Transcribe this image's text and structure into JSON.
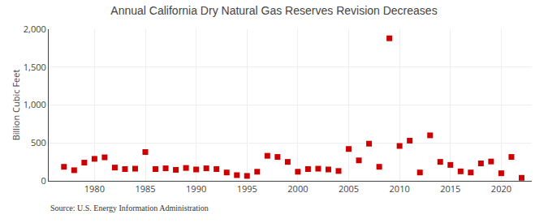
{
  "chart_data": {
    "type": "scatter",
    "title": "Annual California Dry Natural Gas Reserves Revision Decreases",
    "ylabel": "Billion Cubic Feet",
    "annotations": [
      "Source: U.S. Energy Information Administration"
    ],
    "x": [
      1977,
      1978,
      1979,
      1980,
      1981,
      1982,
      1983,
      1984,
      1985,
      1986,
      1987,
      1988,
      1989,
      1990,
      1991,
      1992,
      1993,
      1994,
      1995,
      1996,
      1997,
      1998,
      1999,
      2000,
      2001,
      2002,
      2003,
      2004,
      2005,
      2006,
      2007,
      2008,
      2009,
      2010,
      2011,
      2012,
      2013,
      2014,
      2015,
      2016,
      2017,
      2018,
      2019,
      2020,
      2021,
      2022
    ],
    "values": [
      185,
      140,
      240,
      290,
      310,
      175,
      155,
      160,
      380,
      155,
      165,
      145,
      170,
      150,
      165,
      155,
      110,
      75,
      65,
      120,
      330,
      315,
      250,
      120,
      155,
      160,
      150,
      130,
      420,
      270,
      490,
      185,
      1880,
      460,
      530,
      110,
      600,
      250,
      210,
      125,
      110,
      230,
      255,
      100,
      315,
      40
    ],
    "color": "#cc0000",
    "marker": "square",
    "xlim": [
      1975.5,
      2023
    ],
    "ylim": [
      0,
      2000
    ],
    "xticks": [
      1980,
      1985,
      1990,
      1995,
      2000,
      2005,
      2010,
      2015,
      2020
    ],
    "yticks": [
      0,
      500,
      {
        "value": 1000,
        "label": "1,000"
      },
      {
        "value": 1500,
        "label": "1,500"
      },
      {
        "value": 2000,
        "label": "2,000"
      }
    ],
    "grid": true
  }
}
